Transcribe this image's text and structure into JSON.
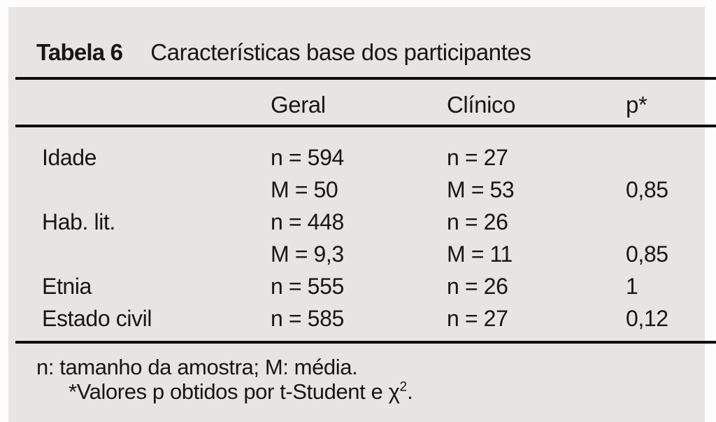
{
  "colors": {
    "panel_background": "#e6e5e3",
    "page_background": "#fdfdfd",
    "text": "#161616",
    "rule": "#0e0e0e"
  },
  "title": {
    "label": "Tabela 6",
    "text": "Características base dos participantes"
  },
  "table": {
    "columns": {
      "geral": "Geral",
      "clinico": "Clínico",
      "p": "p*"
    },
    "rows": [
      {
        "label": "Idade",
        "geral": "n = 594",
        "clinico": "n = 27",
        "p": ""
      },
      {
        "label": "",
        "geral": "M = 50",
        "clinico": "M = 53",
        "p": "0,85"
      },
      {
        "label": "Hab. lit.",
        "geral": "n = 448",
        "clinico": "n = 26",
        "p": ""
      },
      {
        "label": "",
        "geral": "M = 9,3",
        "clinico": "M = 11",
        "p": "0,85"
      },
      {
        "label": "Etnia",
        "geral": "n = 555",
        "clinico": "n = 26",
        "p": "1"
      },
      {
        "label": "Estado civil",
        "geral": "n = 585",
        "clinico": "n = 27",
        "p": "0,12"
      }
    ]
  },
  "footnotes": {
    "line1": "n: tamanho da amostra; M: média.",
    "line2_prefix": "*Valores p obtidos por t-Student e ",
    "line2_chi": "χ",
    "line2_sup": "2",
    "line2_suffix": "."
  }
}
